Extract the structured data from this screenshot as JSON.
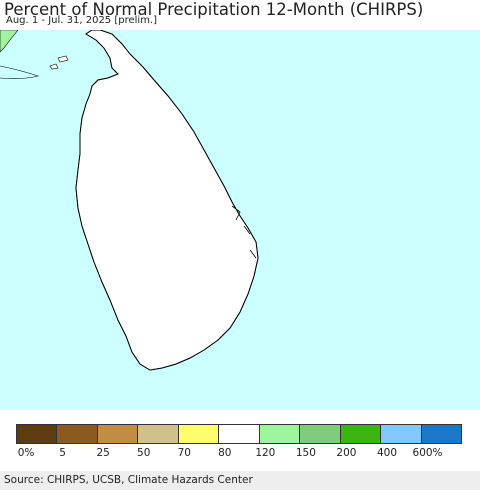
{
  "header": {
    "title": "Percent of Normal Precipitation 12-Month (CHIRPS)",
    "subtitle": "Aug. 1 - Jul. 31, 2025 [prelim.]"
  },
  "map": {
    "region": "Sri Lanka",
    "ocean_color": "#ccffff",
    "land_normal_color": "#ffffff",
    "land_wet_color": "#9df59d",
    "land_wetter_color": "#7dcd7d"
  },
  "legend": {
    "colors": [
      "#5c3c10",
      "#8c5a1e",
      "#c08c46",
      "#d2c08a",
      "#fdfd6e",
      "#ffffff",
      "#9df59d",
      "#7dcd7d",
      "#3cb414",
      "#82c8ff",
      "#1e78c8"
    ],
    "labels": [
      "0%",
      "5",
      "25",
      "50",
      "70",
      "80",
      "120",
      "150",
      "200",
      "400",
      "600%"
    ]
  },
  "footer": {
    "source": "Source: CHIRPS, UCSB, Climate Hazards Center"
  }
}
